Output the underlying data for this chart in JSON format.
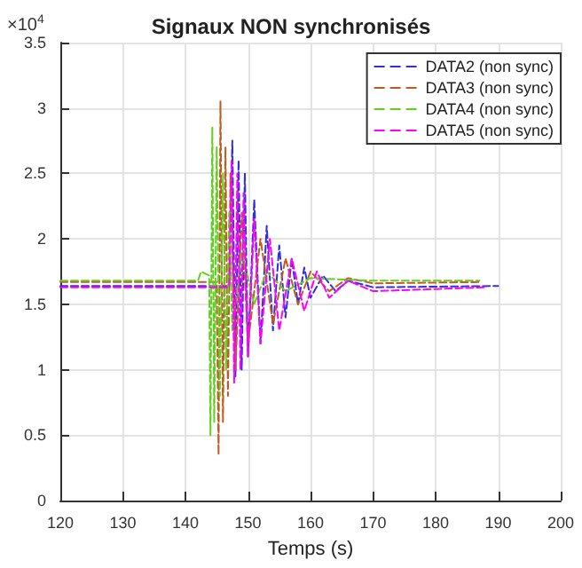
{
  "chart_data": {
    "type": "line",
    "title": "Signaux NON synchronisés",
    "xlabel": "Temps (s)",
    "annotations": [
      "×10$^{4}$"
    ],
    "xlim": [
      120,
      200
    ],
    "xticks": [
      120,
      130,
      140,
      150,
      160,
      170,
      180,
      190,
      200
    ],
    "ylim": [
      0,
      3.5
    ],
    "yticks": [
      0,
      0.5,
      1,
      1.5,
      2,
      2.5,
      3,
      3.5
    ],
    "grid": true,
    "legend": "top right",
    "line_style": "dashed",
    "marker": "none",
    "series": [
      {
        "name": "DATA2 (non sync)",
        "color": "#3030e0",
        "x": [
          120,
          147,
          147.5,
          148,
          148.5,
          149,
          149.5,
          150,
          151,
          152,
          153,
          154,
          155,
          156,
          157,
          158,
          159,
          160,
          162,
          164,
          166,
          170,
          190
        ],
        "values": [
          1.64,
          1.64,
          2.75,
          0.95,
          2.6,
          1.0,
          2.5,
          1.1,
          2.3,
          1.2,
          2.1,
          1.3,
          1.95,
          1.4,
          1.85,
          1.5,
          1.78,
          1.55,
          1.72,
          1.6,
          1.68,
          1.63,
          1.64
        ]
      },
      {
        "name": "DATA3 (non sync)",
        "color": "#c05a20",
        "x": [
          120,
          145,
          145.3,
          145.6,
          146,
          146.4,
          146.8,
          147.2,
          148,
          149,
          150,
          152,
          154,
          156,
          158,
          160,
          163,
          166,
          170,
          187
        ],
        "values": [
          1.67,
          1.67,
          0.35,
          3.05,
          0.6,
          2.7,
          0.8,
          2.5,
          1.0,
          2.2,
          1.2,
          2.0,
          1.35,
          1.85,
          1.5,
          1.75,
          1.6,
          1.7,
          1.66,
          1.67
        ]
      },
      {
        "name": "DATA4 (non sync)",
        "color": "#60d020",
        "x": [
          120,
          142,
          142.5,
          143.8,
          144,
          144.3,
          144.6,
          145,
          145.5,
          146,
          146.5,
          147,
          147.5,
          149,
          151,
          153,
          156,
          160,
          170,
          187
        ],
        "values": [
          1.68,
          1.68,
          1.75,
          1.72,
          0.5,
          2.85,
          0.6,
          2.7,
          0.8,
          2.5,
          1.0,
          2.2,
          1.3,
          1.9,
          1.5,
          1.75,
          1.6,
          1.7,
          1.68,
          1.68
        ]
      },
      {
        "name": "DATA5 (non sync)",
        "color": "#ff00ff",
        "x": [
          120,
          147,
          147.4,
          147.8,
          148.3,
          148.8,
          149.3,
          150,
          151,
          152,
          153.5,
          155,
          157,
          159,
          161,
          163,
          166,
          170,
          188
        ],
        "values": [
          1.63,
          1.63,
          2.6,
          0.9,
          2.5,
          1.0,
          2.35,
          1.1,
          2.15,
          1.2,
          2.0,
          1.3,
          1.85,
          1.45,
          1.75,
          1.55,
          1.68,
          1.6,
          1.63
        ]
      }
    ]
  }
}
